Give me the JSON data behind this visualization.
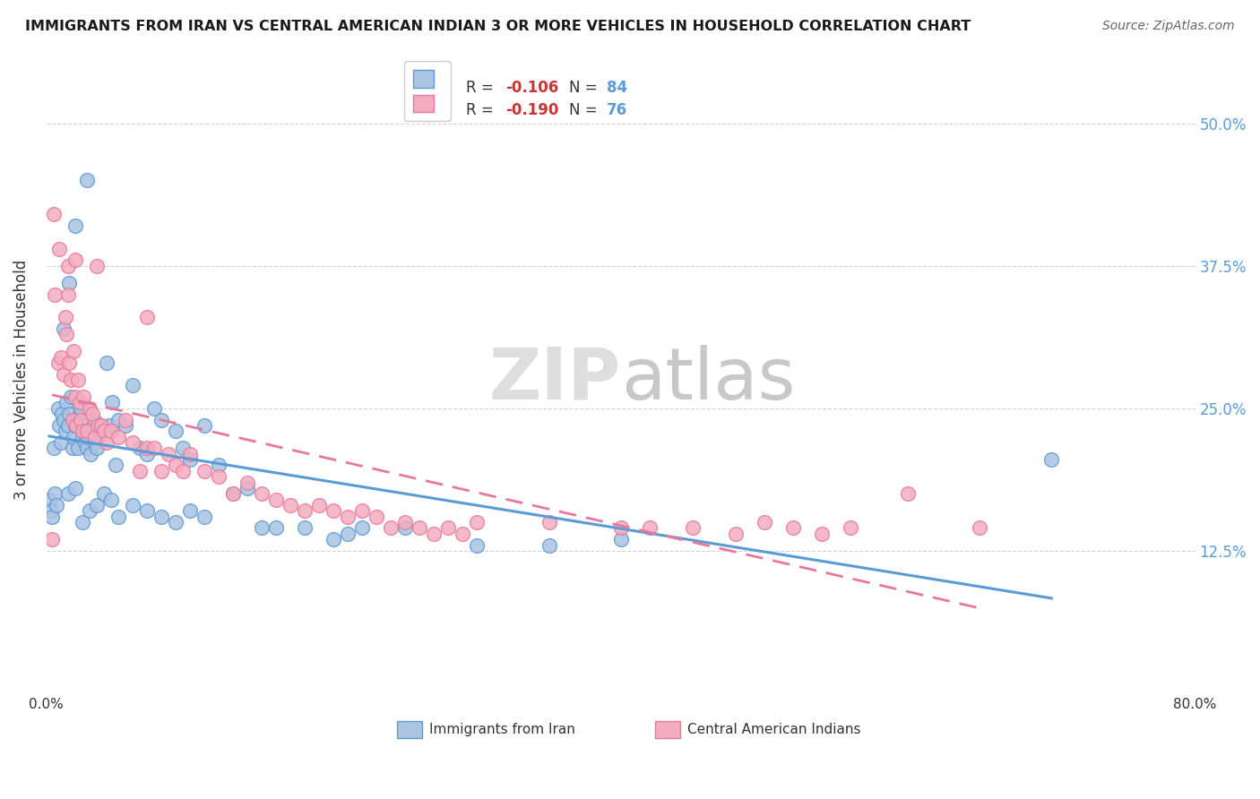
{
  "title": "IMMIGRANTS FROM IRAN VS CENTRAL AMERICAN INDIAN 3 OR MORE VEHICLES IN HOUSEHOLD CORRELATION CHART",
  "source": "Source: ZipAtlas.com",
  "ylabel_label": "3 or more Vehicles in Household",
  "legend_label1": "Immigrants from Iran",
  "legend_label2": "Central American Indians",
  "legend_r1": "-0.106",
  "legend_n1": "84",
  "legend_r2": "-0.190",
  "legend_n2": "76",
  "color_blue": "#aac4e2",
  "color_pink": "#f4adc0",
  "line_blue": "#5b9bd5",
  "line_pink": "#e8789a",
  "background": "#ffffff",
  "xmin": 0.0,
  "xmax": 0.8,
  "ymin": 0.0,
  "ymax": 0.55,
  "blue_x": [
    0.005,
    0.008,
    0.009,
    0.01,
    0.011,
    0.012,
    0.013,
    0.014,
    0.015,
    0.016,
    0.017,
    0.018,
    0.019,
    0.02,
    0.021,
    0.022,
    0.023,
    0.024,
    0.025,
    0.026,
    0.027,
    0.028,
    0.029,
    0.03,
    0.031,
    0.032,
    0.033,
    0.034,
    0.035,
    0.036,
    0.038,
    0.04,
    0.042,
    0.044,
    0.046,
    0.048,
    0.05,
    0.055,
    0.06,
    0.065,
    0.07,
    0.075,
    0.08,
    0.09,
    0.095,
    0.1,
    0.11,
    0.12,
    0.13,
    0.14,
    0.002,
    0.003,
    0.004,
    0.006,
    0.007,
    0.015,
    0.02,
    0.025,
    0.03,
    0.035,
    0.04,
    0.045,
    0.05,
    0.06,
    0.07,
    0.08,
    0.09,
    0.1,
    0.11,
    0.15,
    0.16,
    0.18,
    0.2,
    0.21,
    0.22,
    0.25,
    0.3,
    0.35,
    0.4,
    0.7,
    0.012,
    0.016,
    0.02,
    0.028
  ],
  "blue_y": [
    0.215,
    0.25,
    0.235,
    0.22,
    0.245,
    0.24,
    0.23,
    0.255,
    0.235,
    0.245,
    0.26,
    0.215,
    0.225,
    0.235,
    0.24,
    0.215,
    0.245,
    0.25,
    0.225,
    0.23,
    0.22,
    0.215,
    0.225,
    0.23,
    0.21,
    0.235,
    0.24,
    0.22,
    0.215,
    0.225,
    0.235,
    0.23,
    0.29,
    0.235,
    0.255,
    0.2,
    0.24,
    0.235,
    0.27,
    0.215,
    0.21,
    0.25,
    0.24,
    0.23,
    0.215,
    0.205,
    0.235,
    0.2,
    0.175,
    0.18,
    0.17,
    0.16,
    0.155,
    0.175,
    0.165,
    0.175,
    0.18,
    0.15,
    0.16,
    0.165,
    0.175,
    0.17,
    0.155,
    0.165,
    0.16,
    0.155,
    0.15,
    0.16,
    0.155,
    0.145,
    0.145,
    0.145,
    0.135,
    0.14,
    0.145,
    0.145,
    0.13,
    0.13,
    0.135,
    0.205,
    0.32,
    0.36,
    0.41,
    0.45
  ],
  "pink_x": [
    0.004,
    0.006,
    0.008,
    0.01,
    0.012,
    0.013,
    0.014,
    0.015,
    0.016,
    0.017,
    0.018,
    0.019,
    0.02,
    0.021,
    0.022,
    0.023,
    0.024,
    0.025,
    0.026,
    0.028,
    0.03,
    0.032,
    0.034,
    0.036,
    0.038,
    0.04,
    0.042,
    0.045,
    0.05,
    0.055,
    0.06,
    0.065,
    0.07,
    0.075,
    0.08,
    0.085,
    0.09,
    0.095,
    0.1,
    0.11,
    0.12,
    0.13,
    0.14,
    0.15,
    0.16,
    0.17,
    0.18,
    0.19,
    0.2,
    0.21,
    0.22,
    0.23,
    0.24,
    0.25,
    0.26,
    0.27,
    0.28,
    0.29,
    0.3,
    0.35,
    0.4,
    0.42,
    0.45,
    0.48,
    0.5,
    0.52,
    0.54,
    0.56,
    0.6,
    0.65,
    0.005,
    0.009,
    0.015,
    0.02,
    0.035,
    0.07
  ],
  "pink_y": [
    0.135,
    0.35,
    0.29,
    0.295,
    0.28,
    0.33,
    0.315,
    0.35,
    0.29,
    0.275,
    0.24,
    0.3,
    0.26,
    0.235,
    0.275,
    0.255,
    0.24,
    0.23,
    0.26,
    0.23,
    0.25,
    0.245,
    0.225,
    0.235,
    0.235,
    0.23,
    0.22,
    0.23,
    0.225,
    0.24,
    0.22,
    0.195,
    0.215,
    0.215,
    0.195,
    0.21,
    0.2,
    0.195,
    0.21,
    0.195,
    0.19,
    0.175,
    0.185,
    0.175,
    0.17,
    0.165,
    0.16,
    0.165,
    0.16,
    0.155,
    0.16,
    0.155,
    0.145,
    0.15,
    0.145,
    0.14,
    0.145,
    0.14,
    0.15,
    0.15,
    0.145,
    0.145,
    0.145,
    0.14,
    0.15,
    0.145,
    0.14,
    0.145,
    0.175,
    0.145,
    0.42,
    0.39,
    0.375,
    0.38,
    0.375,
    0.33
  ]
}
